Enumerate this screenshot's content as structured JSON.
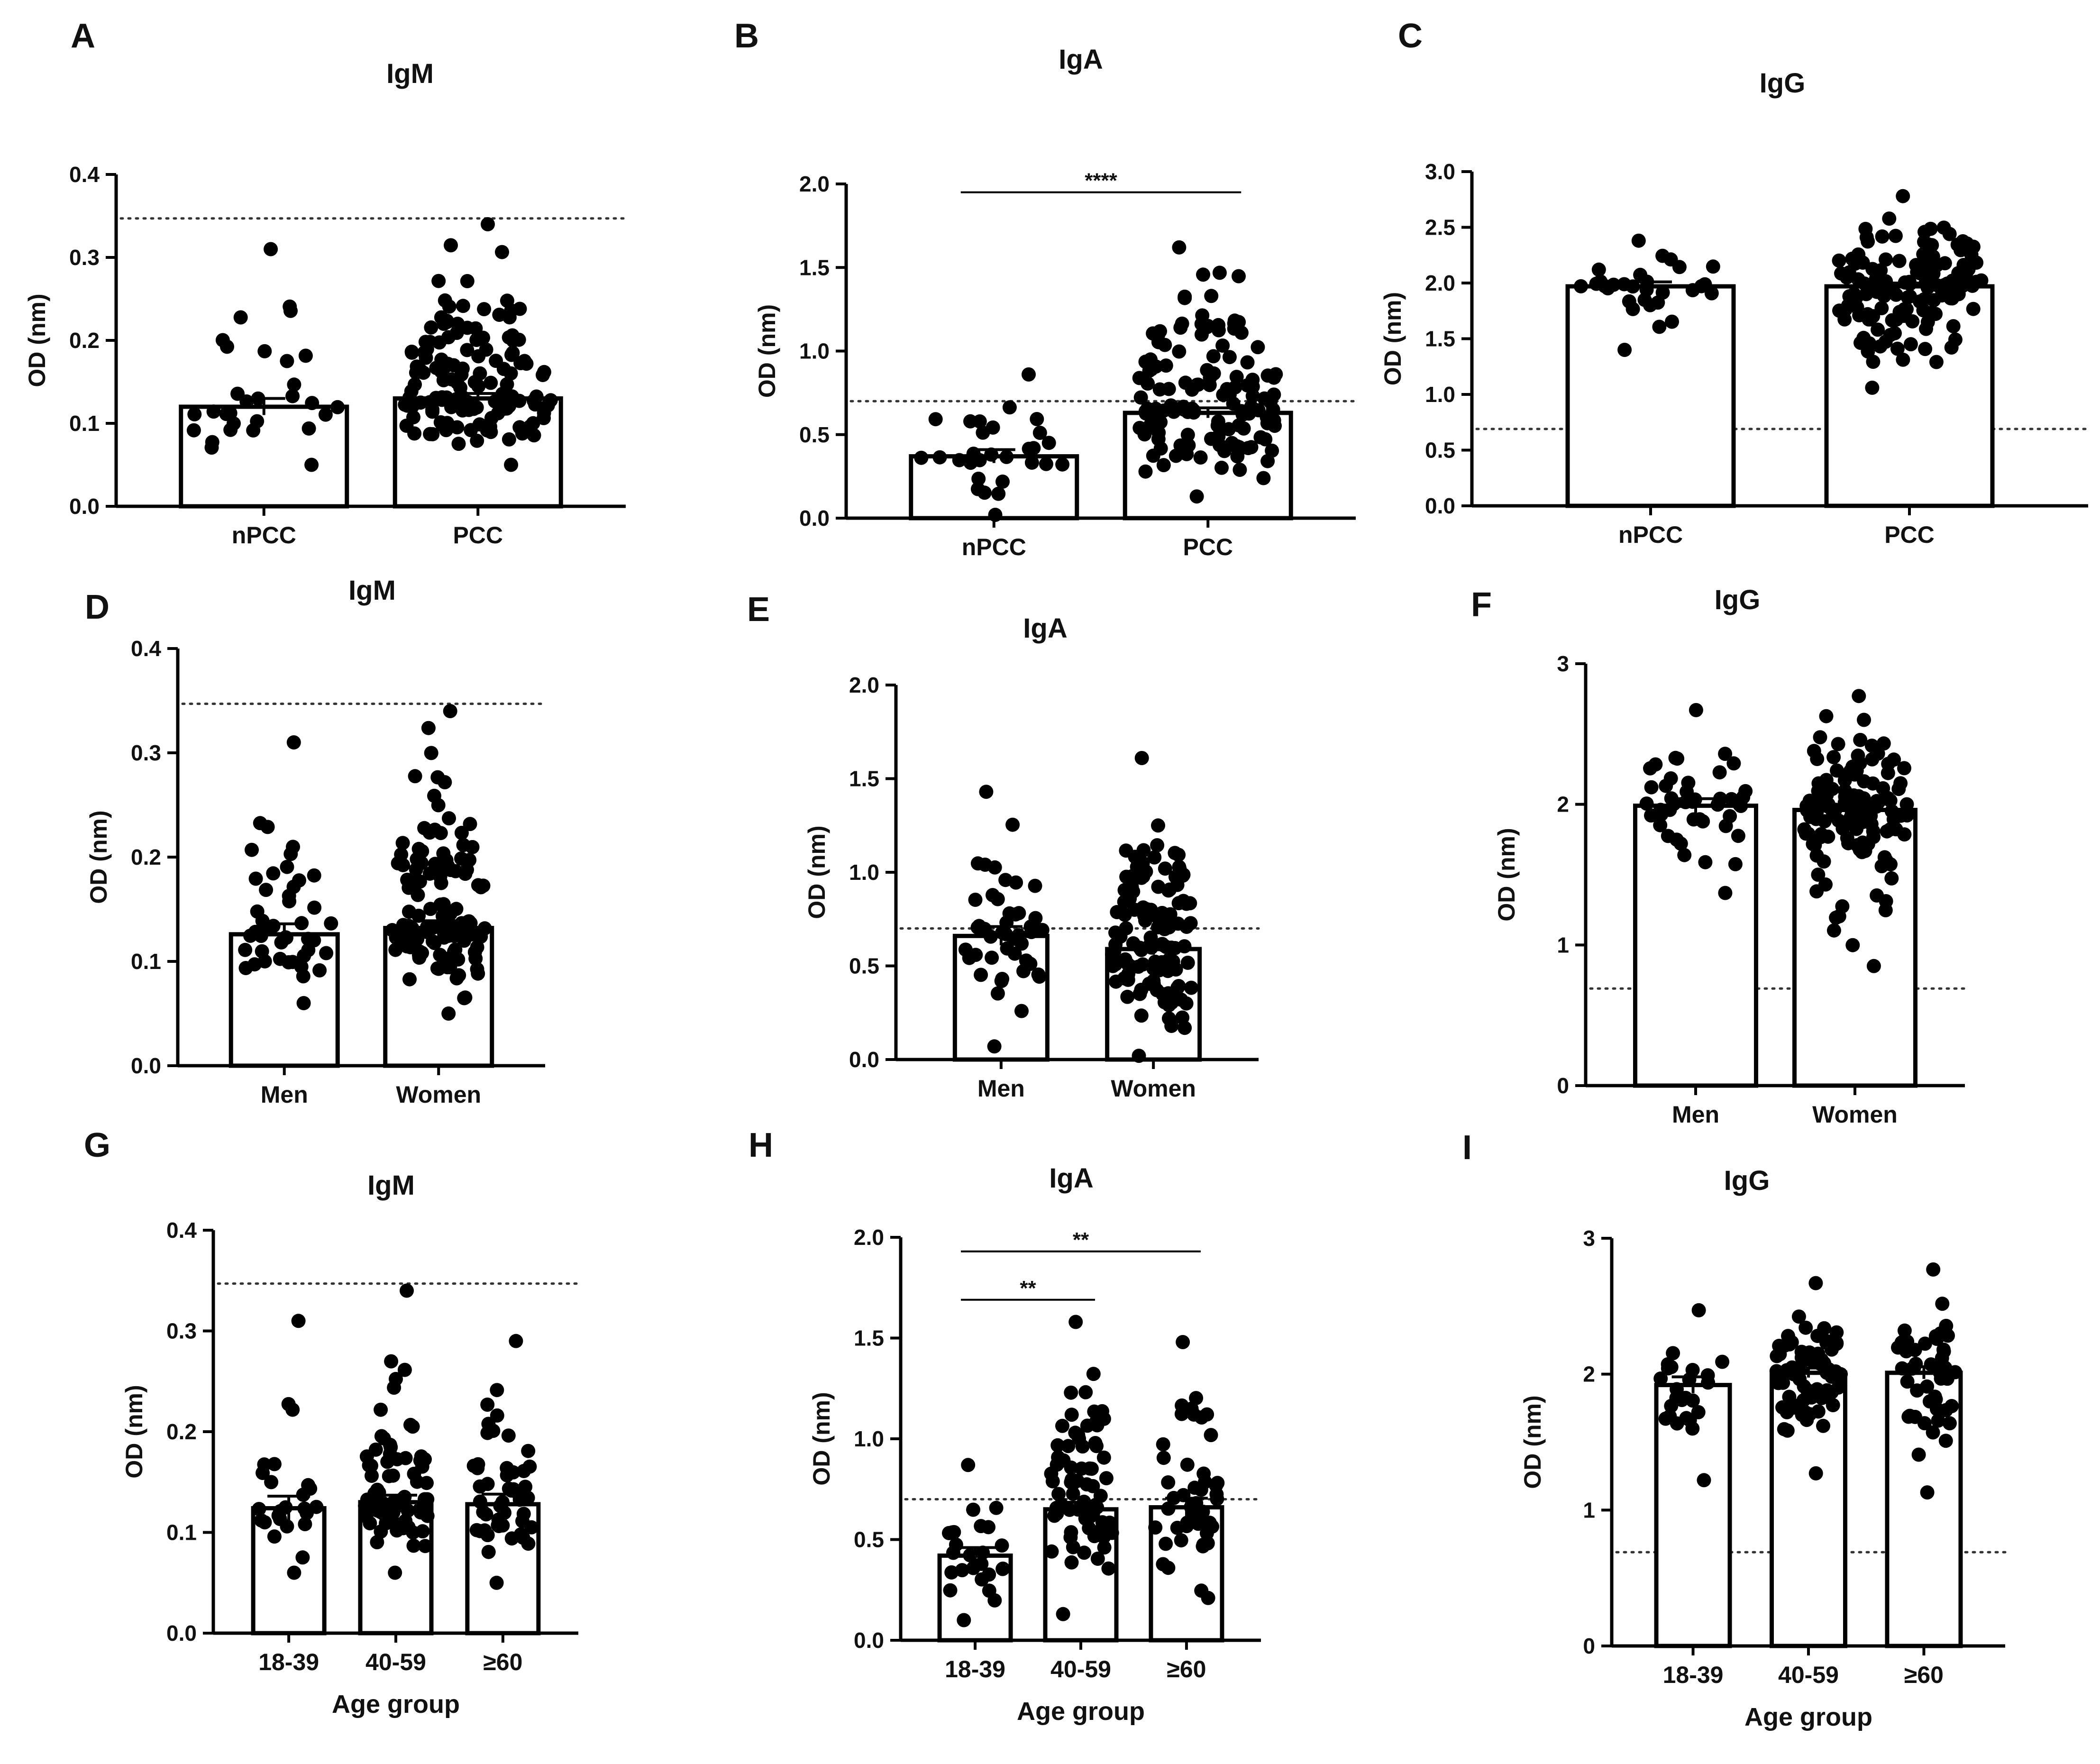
{
  "figure": {
    "reference_line_color": "#333333",
    "point_color": "#000000",
    "bar_fill": "#ffffff"
  },
  "chart_data": [
    {
      "panel": "A",
      "type": "bar",
      "title": "IgM",
      "ylabel": "OD (nm)",
      "xlabel": "",
      "ylim": [
        0,
        0.4
      ],
      "yticks": [
        0.0,
        0.1,
        0.2,
        0.3,
        0.4
      ],
      "ytick_labels": [
        "0.0",
        "0.1",
        "0.2",
        "0.3",
        "0.4"
      ],
      "threshold": 0.347,
      "categories": [
        "nPCC",
        "PCC"
      ],
      "values": [
        0.12,
        0.13
      ],
      "sem": [
        0.01,
        0.006
      ],
      "n": [
        30,
        140
      ],
      "ranges": [
        [
          0.05,
          0.31
        ],
        [
          0.05,
          0.34
        ]
      ],
      "significance": []
    },
    {
      "panel": "B",
      "type": "bar",
      "title": "IgA",
      "ylabel": "OD (nm)",
      "xlabel": "",
      "ylim": [
        0,
        2.0
      ],
      "yticks": [
        0.0,
        0.5,
        1.0,
        1.5,
        2.0
      ],
      "ytick_labels": [
        "0.0",
        "0.5",
        "1.0",
        "1.5",
        "2.0"
      ],
      "threshold": 0.7,
      "categories": [
        "nPCC",
        "PCC"
      ],
      "values": [
        0.37,
        0.63
      ],
      "sem": [
        0.04,
        0.03
      ],
      "n": [
        30,
        140
      ],
      "ranges": [
        [
          0.02,
          0.86
        ],
        [
          0.13,
          1.62
        ]
      ],
      "significance": [
        {
          "from": 0,
          "to": 1,
          "label": "****",
          "y": 1.95
        }
      ]
    },
    {
      "panel": "C",
      "type": "bar",
      "title": "IgG",
      "ylabel": "OD (nm)",
      "xlabel": "",
      "ylim": [
        0,
        3.0
      ],
      "yticks": [
        0.0,
        0.5,
        1.0,
        1.5,
        2.0,
        2.5,
        3.0
      ],
      "ytick_labels": [
        "0.0",
        "0.5",
        "1.0",
        "1.5",
        "2.0",
        "2.5",
        "3.0"
      ],
      "threshold": 0.69,
      "categories": [
        "nPCC",
        "PCC"
      ],
      "values": [
        1.97,
        1.97
      ],
      "sem": [
        0.04,
        0.03
      ],
      "n": [
        30,
        140
      ],
      "ranges": [
        [
          1.4,
          2.38
        ],
        [
          1.06,
          2.78
        ]
      ],
      "significance": []
    },
    {
      "panel": "D",
      "type": "bar",
      "title": "IgM",
      "ylabel": "OD (nm)",
      "xlabel": "",
      "ylim": [
        0,
        0.4
      ],
      "yticks": [
        0.0,
        0.1,
        0.2,
        0.3,
        0.4
      ],
      "ytick_labels": [
        "0.0",
        "0.1",
        "0.2",
        "0.3",
        "0.4"
      ],
      "threshold": 0.347,
      "categories": [
        "Men",
        "Women"
      ],
      "values": [
        0.126,
        0.132
      ],
      "sem": [
        0.01,
        0.007
      ],
      "n": [
        45,
        125
      ],
      "ranges": [
        [
          0.06,
          0.31
        ],
        [
          0.05,
          0.34
        ]
      ],
      "significance": []
    },
    {
      "panel": "E",
      "type": "bar",
      "title": "IgA",
      "ylabel": "OD (nm)",
      "xlabel": "",
      "ylim": [
        0,
        2.0
      ],
      "yticks": [
        0.0,
        0.5,
        1.0,
        1.5,
        2.0
      ],
      "ytick_labels": [
        "0.0",
        "0.5",
        "1.0",
        "1.5",
        "2.0"
      ],
      "threshold": 0.7,
      "categories": [
        "Men",
        "Women"
      ],
      "values": [
        0.66,
        0.59
      ],
      "sem": [
        0.05,
        0.03
      ],
      "n": [
        45,
        125
      ],
      "ranges": [
        [
          0.07,
          1.43
        ],
        [
          0.02,
          1.61
        ]
      ],
      "significance": []
    },
    {
      "panel": "F",
      "type": "bar",
      "title": "IgG",
      "ylabel": "OD (nm)",
      "xlabel": "",
      "ylim": [
        0,
        3
      ],
      "yticks": [
        0,
        1,
        2,
        3
      ],
      "ytick_labels": [
        "0",
        "1",
        "2",
        "3"
      ],
      "threshold": 0.69,
      "categories": [
        "Men",
        "Women"
      ],
      "values": [
        1.99,
        1.96
      ],
      "sem": [
        0.05,
        0.03
      ],
      "n": [
        45,
        125
      ],
      "ranges": [
        [
          1.37,
          2.67
        ],
        [
          0.85,
          2.77
        ]
      ],
      "significance": []
    },
    {
      "panel": "G",
      "type": "bar",
      "title": "IgM",
      "ylabel": "OD (nm)",
      "xlabel": "Age group",
      "ylim": [
        0,
        0.4
      ],
      "yticks": [
        0.0,
        0.1,
        0.2,
        0.3,
        0.4
      ],
      "ytick_labels": [
        "0.0",
        "0.1",
        "0.2",
        "0.3",
        "0.4"
      ],
      "threshold": 0.347,
      "categories": [
        "18-39",
        "40-59",
        "≥60"
      ],
      "values": [
        0.124,
        0.13,
        0.128
      ],
      "sem": [
        0.012,
        0.007,
        0.01
      ],
      "n": [
        25,
        75,
        50
      ],
      "ranges": [
        [
          0.06,
          0.31
        ],
        [
          0.06,
          0.34
        ],
        [
          0.05,
          0.29
        ]
      ],
      "significance": []
    },
    {
      "panel": "H",
      "type": "bar",
      "title": "IgA",
      "ylabel": "OD (nm)",
      "xlabel": "Age group",
      "ylim": [
        0,
        2.0
      ],
      "yticks": [
        0.0,
        0.5,
        1.0,
        1.5,
        2.0
      ],
      "ytick_labels": [
        "0.0",
        "0.5",
        "1.0",
        "1.5",
        "2.0"
      ],
      "threshold": 0.7,
      "categories": [
        "18-39",
        "40-59",
        "≥60"
      ],
      "values": [
        0.42,
        0.65,
        0.66
      ],
      "sem": [
        0.04,
        0.035,
        0.045
      ],
      "n": [
        25,
        75,
        50
      ],
      "ranges": [
        [
          0.1,
          0.87
        ],
        [
          0.13,
          1.58
        ],
        [
          0.21,
          1.48
        ]
      ],
      "significance": [
        {
          "from": 0,
          "to": 2,
          "label": "**",
          "y": 1.93
        },
        {
          "from": 0,
          "to": 1,
          "label": "**",
          "y": 1.69
        }
      ]
    },
    {
      "panel": "I",
      "type": "bar",
      "title": "IgG",
      "ylabel": "OD (nm)",
      "xlabel": "Age group",
      "ylim": [
        0,
        3
      ],
      "yticks": [
        0,
        1,
        2,
        3
      ],
      "ytick_labels": [
        "0",
        "1",
        "2",
        "3"
      ],
      "threshold": 0.69,
      "categories": [
        "18-39",
        "40-59",
        "≥60"
      ],
      "values": [
        1.92,
        2.01,
        2.01
      ],
      "sem": [
        0.06,
        0.035,
        0.045
      ],
      "n": [
        25,
        75,
        50
      ],
      "ranges": [
        [
          1.22,
          2.47
        ],
        [
          1.27,
          2.67
        ],
        [
          1.13,
          2.77
        ]
      ],
      "significance": []
    }
  ]
}
